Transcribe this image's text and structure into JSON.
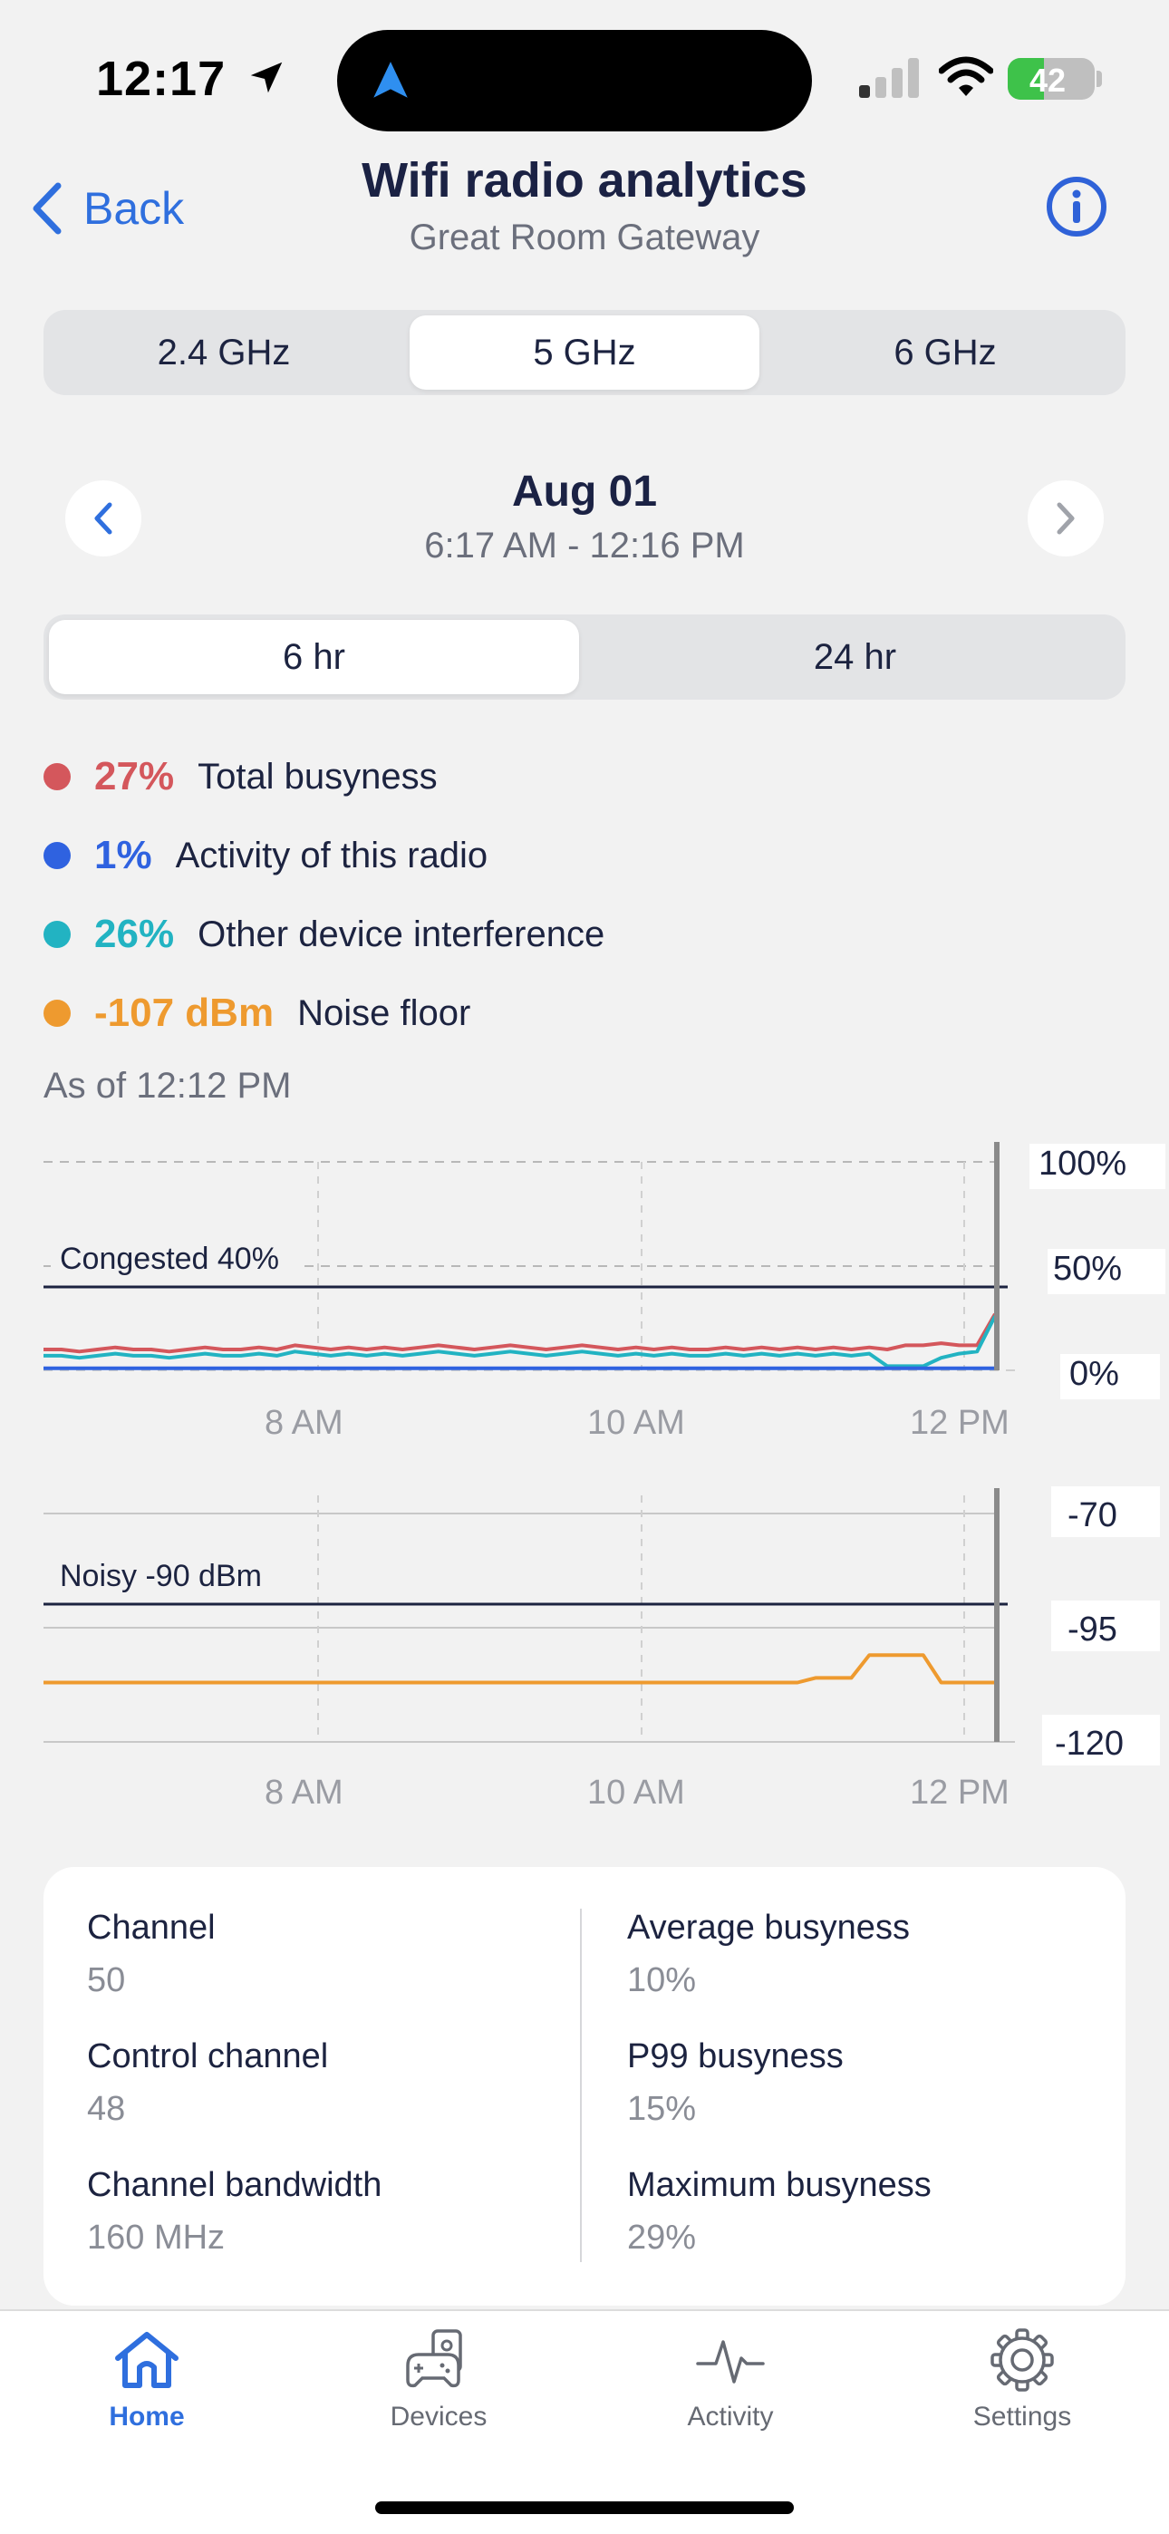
{
  "status_bar": {
    "time": "12:17",
    "battery": "42",
    "battery_level": 0.42
  },
  "header": {
    "back_label": "Back",
    "title": "Wifi radio analytics",
    "subtitle": "Great Room Gateway"
  },
  "bands": [
    {
      "label": "2.4 GHz",
      "active": false
    },
    {
      "label": "5 GHz",
      "active": true
    },
    {
      "label": "6 GHz",
      "active": false
    }
  ],
  "date_nav": {
    "date": "Aug 01",
    "range": "6:17 AM - 12:16 PM"
  },
  "ranges": [
    {
      "label": "6 hr",
      "active": true
    },
    {
      "label": "24 hr",
      "active": false
    }
  ],
  "legend": [
    {
      "value": "27%",
      "label": "Total busyness",
      "color": "#d4575c"
    },
    {
      "value": "1%",
      "label": "Activity of this radio",
      "color": "#2f62e0"
    },
    {
      "value": "26%",
      "label": "Other device interference",
      "color": "#22b3c2"
    },
    {
      "value": "-107 dBm",
      "label": "Noise floor",
      "color": "#ee9a2f"
    }
  ],
  "as_of": "As of 12:12 PM",
  "chart_data": [
    {
      "type": "line",
      "x_ticks": [
        "8 AM",
        "10 AM",
        "12 PM"
      ],
      "y_ticks": [
        "100%",
        "50%",
        "0%"
      ],
      "ylim": [
        0,
        100
      ],
      "threshold": {
        "label": "Congested 40%",
        "value": 40
      },
      "series": [
        {
          "name": "Total busyness",
          "color": "#d4575c",
          "values": [
            10,
            10,
            9,
            10,
            11,
            10,
            10,
            9,
            10,
            11,
            10,
            10,
            11,
            10,
            12,
            11,
            10,
            11,
            10,
            11,
            10,
            11,
            12,
            11,
            10,
            11,
            12,
            11,
            10,
            11,
            12,
            11,
            10,
            11,
            10,
            11,
            10,
            10,
            11,
            10,
            11,
            10,
            11,
            10,
            11,
            10,
            11,
            10,
            12,
            12,
            13,
            12,
            12,
            27
          ]
        },
        {
          "name": "Other device interference",
          "color": "#22b3c2",
          "values": [
            7,
            7,
            6,
            7,
            8,
            7,
            7,
            6,
            7,
            8,
            7,
            7,
            8,
            7,
            9,
            8,
            7,
            8,
            7,
            8,
            7,
            8,
            9,
            8,
            7,
            8,
            9,
            8,
            7,
            8,
            9,
            8,
            7,
            8,
            7,
            8,
            7,
            7,
            8,
            7,
            8,
            7,
            8,
            7,
            8,
            7,
            8,
            2,
            2,
            2,
            6,
            8,
            9,
            26
          ]
        },
        {
          "name": "Activity of this radio",
          "color": "#2f62e0",
          "values": [
            1,
            1,
            1,
            1,
            1,
            1,
            1,
            1,
            1,
            1,
            1,
            1,
            1,
            1,
            1,
            1,
            1,
            1,
            1,
            1,
            1,
            1,
            1,
            1,
            1,
            1,
            1,
            1,
            1,
            1,
            1,
            1,
            1,
            1,
            1,
            1,
            1,
            1,
            1,
            1,
            1,
            1,
            1,
            1,
            1,
            1,
            1,
            1,
            1,
            1,
            1,
            1,
            1,
            1
          ]
        }
      ]
    },
    {
      "type": "line",
      "x_ticks": [
        "8 AM",
        "10 AM",
        "12 PM"
      ],
      "y_ticks": [
        "-70",
        "-95",
        "-120"
      ],
      "ylim": [
        -120,
        -70
      ],
      "threshold": {
        "label": "Noisy -90 dBm",
        "value": -90
      },
      "series": [
        {
          "name": "Noise floor",
          "color": "#ee9a2f",
          "values": [
            -107,
            -107,
            -107,
            -107,
            -107,
            -107,
            -107,
            -107,
            -107,
            -107,
            -107,
            -107,
            -107,
            -107,
            -107,
            -107,
            -107,
            -107,
            -107,
            -107,
            -107,
            -107,
            -107,
            -107,
            -107,
            -107,
            -107,
            -107,
            -107,
            -107,
            -107,
            -107,
            -107,
            -107,
            -107,
            -107,
            -107,
            -107,
            -107,
            -107,
            -107,
            -107,
            -107,
            -106,
            -106,
            -106,
            -101,
            -101,
            -101,
            -101,
            -107,
            -107,
            -107,
            -107
          ]
        }
      ]
    }
  ],
  "stats_left": [
    {
      "label": "Channel",
      "value": "50"
    },
    {
      "label": "Control channel",
      "value": "48"
    },
    {
      "label": "Channel bandwidth",
      "value": "160 MHz"
    }
  ],
  "stats_right": [
    {
      "label": "Average busyness",
      "value": "10%"
    },
    {
      "label": "P99 busyness",
      "value": "15%"
    },
    {
      "label": "Maximum busyness",
      "value": "29%"
    }
  ],
  "tabs": [
    {
      "label": "Home",
      "icon": "home-icon",
      "active": true
    },
    {
      "label": "Devices",
      "icon": "devices-icon",
      "active": false
    },
    {
      "label": "Activity",
      "icon": "activity-icon",
      "active": false
    },
    {
      "label": "Settings",
      "icon": "gear-icon",
      "active": false
    }
  ]
}
